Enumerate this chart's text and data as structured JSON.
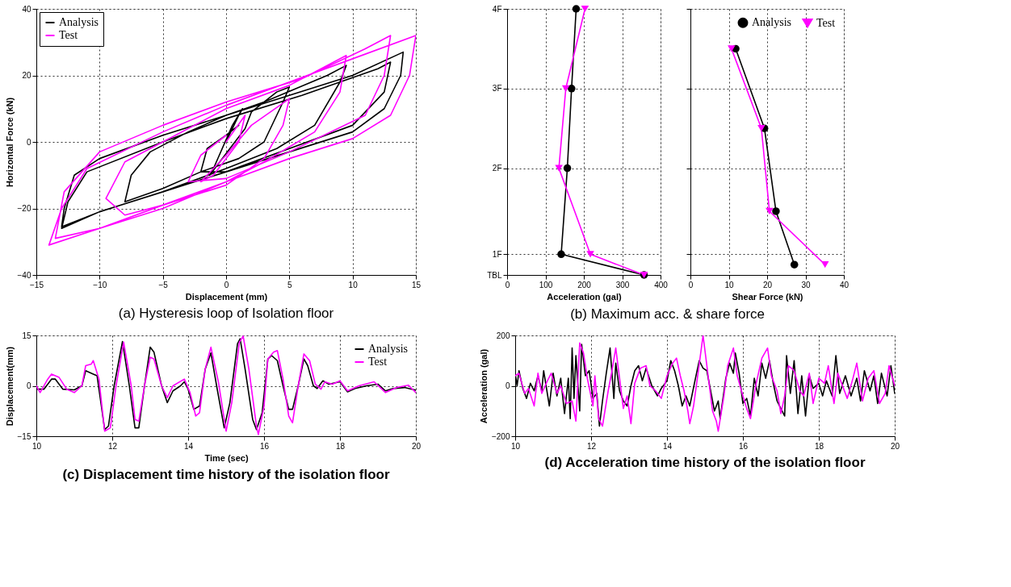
{
  "chart_data": [
    {
      "type": "line",
      "title": "(a) Hysteresis loop of Isolation floor",
      "xlabel": "Displacement (mm)",
      "ylabel": "Horizontal Force (kN)",
      "xlim": [
        -15,
        15
      ],
      "ylim": [
        -40,
        40
      ],
      "xticks": [
        -15,
        -10,
        -5,
        0,
        5,
        10,
        15
      ],
      "yticks": [
        -40,
        -20,
        0,
        20,
        40
      ],
      "grid": true,
      "legend": "top left",
      "line_style": "solid",
      "series": [
        {
          "name": "Analysis",
          "color": "#000000",
          "x": [
            0,
            1,
            1.3,
            0.5,
            -1,
            -1.3,
            -0.5,
            1.5,
            2,
            4,
            5,
            4.5,
            3,
            1,
            -2,
            -5,
            -8,
            -7.5,
            -6,
            -3,
            0,
            3,
            8,
            9.5,
            9,
            7,
            4,
            0,
            -5,
            -10,
            -13,
            -12.8,
            -12,
            -10,
            -5,
            0,
            5,
            10,
            14,
            13.8,
            12.5,
            10,
            5,
            0,
            -5,
            -10,
            -13,
            -12.5,
            -11,
            -5,
            0,
            6,
            12,
            13,
            12.5,
            10,
            5,
            0,
            -2,
            -1.5,
            0,
            1
          ],
          "values": [
            0,
            8,
            10,
            5,
            -8,
            -10,
            -6,
            4,
            9,
            15,
            16.5,
            12,
            0,
            -5,
            -9,
            -14,
            -18,
            -10,
            -3,
            3,
            8,
            12,
            20,
            23,
            18,
            5,
            -2,
            -8,
            -15,
            -21,
            -25.5,
            -20,
            -10,
            -5,
            2,
            8,
            14,
            20,
            27,
            20,
            10,
            3,
            -3,
            -9,
            -15,
            -21,
            -26,
            -18,
            -9,
            0,
            7,
            14,
            22,
            24,
            15,
            5,
            -2,
            -9,
            -9,
            -2,
            2,
            5
          ]
        },
        {
          "name": "Test",
          "color": "#ff00ff",
          "x": [
            0,
            1.5,
            1,
            -1,
            -2,
            0,
            2,
            5,
            4.5,
            3,
            0,
            -5,
            -8,
            -9.5,
            -8,
            -5,
            0,
            5,
            9.5,
            9,
            7,
            3,
            0,
            -5,
            -10,
            -14,
            -13,
            -11,
            -5,
            0,
            5,
            10,
            15,
            14.5,
            13,
            10,
            5,
            0,
            -5,
            -10,
            -13.5,
            -12.8,
            -10,
            -5,
            0,
            6,
            11,
            13,
            12.5,
            11,
            5,
            0,
            -3,
            -2,
            0
          ],
          "values": [
            0,
            8,
            0,
            -10,
            -12,
            -4,
            5,
            13,
            5,
            -5,
            -13,
            -19,
            -22,
            -17,
            -6,
            0,
            10,
            17,
            26,
            15,
            3,
            -6,
            -12,
            -20,
            -26,
            -31,
            -20,
            -8,
            3,
            11,
            18,
            25,
            32,
            20,
            8,
            1,
            -5,
            -12,
            -19,
            -26,
            -29,
            -15,
            -3,
            5,
            12,
            19,
            28,
            32,
            20,
            8,
            -3,
            -11,
            -12,
            -4,
            2
          ]
        }
      ]
    },
    {
      "type": "line",
      "title": "(b) Maximum acc. & share force",
      "xlabel": "Acceleration (gal)",
      "xlim": [
        0,
        400
      ],
      "ylim": [
        0.66,
        4
      ],
      "xticks": [
        0,
        100,
        200,
        300,
        400
      ],
      "yticks": [
        {
          "value": 0.66,
          "label": "TBL"
        },
        {
          "value": 0.92,
          "label": "1F"
        },
        {
          "value": 2,
          "label": "2F"
        },
        {
          "value": 3,
          "label": "3F"
        },
        {
          "value": 4,
          "label": "4F"
        }
      ],
      "grid": true,
      "legend": false,
      "line_style": "solid",
      "series": [
        {
          "color": "#000000",
          "marker": "circle",
          "x": [
            180,
            168,
            157,
            141,
            357
          ],
          "values": [
            4,
            3,
            2,
            0.92,
            0.66
          ]
        },
        {
          "color": "#ff00ff",
          "marker": "triangle",
          "x": [
            203,
            153,
            135,
            217,
            357
          ],
          "values": [
            4,
            3,
            2,
            0.92,
            0.66
          ]
        }
      ]
    },
    {
      "type": "line",
      "xlabel": "Shear Force (kN)",
      "xlim": [
        0,
        40
      ],
      "ylim": [
        0.66,
        4
      ],
      "xticks": [
        0,
        10,
        20,
        30,
        40
      ],
      "yticks": [
        {
          "value": 0.66,
          "label": null
        },
        {
          "value": 0.92,
          "label": null
        },
        {
          "value": 2,
          "label": null
        },
        {
          "value": 3,
          "label": null
        },
        {
          "value": 4,
          "label": null
        }
      ],
      "tick_labels": "x",
      "grid": true,
      "legend": "top right",
      "line_style": "solid",
      "series": [
        {
          "name": "Analysis",
          "color": "#000000",
          "marker": "circle",
          "x": [
            11.8,
            19.3,
            22.3,
            27.1
          ],
          "values": [
            3.5,
            2.5,
            1.46,
            0.79
          ]
        },
        {
          "name": "Test",
          "color": "#ff00ff",
          "marker": "triangle",
          "x": [
            10.7,
            18.5,
            20.6,
            35.1
          ],
          "values": [
            3.5,
            2.5,
            1.46,
            0.79
          ]
        }
      ]
    },
    {
      "type": "line",
      "title": "(c) Displacement time history of the isolation floor",
      "xlabel": "Time (sec)",
      "ylabel": "Displacement(mm)",
      "xlim": [
        10,
        20
      ],
      "ylim": [
        -15,
        15
      ],
      "xticks": [
        10,
        12,
        14,
        16,
        18,
        20
      ],
      "yticks": [
        -15,
        0,
        15
      ],
      "grid": true,
      "legend": "top right",
      "line_style": "solid",
      "series": [
        {
          "name": "Analysis",
          "color": "#000000",
          "x": [
            10.0,
            10.2,
            10.4,
            10.5,
            10.7,
            11.0,
            11.2,
            11.3,
            11.5,
            11.6,
            11.8,
            11.9,
            12.05,
            12.27,
            12.45,
            12.6,
            12.7,
            12.85,
            13.0,
            13.1,
            13.3,
            13.45,
            13.6,
            13.8,
            13.9,
            14.0,
            14.15,
            14.3,
            14.45,
            14.6,
            14.75,
            14.95,
            15.1,
            15.3,
            15.37,
            15.5,
            15.7,
            15.8,
            15.95,
            16.1,
            16.2,
            16.35,
            16.5,
            16.65,
            16.75,
            16.9,
            17.05,
            17.15,
            17.3,
            17.4,
            17.55,
            17.7,
            18.0,
            18.2,
            18.4,
            18.7,
            19.0,
            19.2,
            19.4,
            19.7,
            20.0
          ],
          "values": [
            -1,
            -1,
            2,
            2,
            -1,
            -1.2,
            0,
            4.5,
            3.5,
            3,
            -13,
            -12,
            0,
            13.2,
            0,
            -12.5,
            -12.5,
            0,
            11.5,
            10,
            0,
            -5,
            -1.5,
            0,
            1.2,
            -1,
            -7,
            -6,
            5,
            9.8,
            0,
            -12.5,
            -5,
            12.5,
            14,
            5,
            -10,
            -13,
            -8,
            8,
            9,
            7.5,
            0,
            -7,
            -7,
            0,
            8,
            6,
            0,
            -0.8,
            1.5,
            0.5,
            1.2,
            -1.8,
            -0.8,
            0,
            0.5,
            -1.5,
            -0.8,
            -0.5,
            -1.3
          ]
        },
        {
          "name": "Test",
          "color": "#ff00ff",
          "x": [
            10.0,
            10.1,
            10.3,
            10.4,
            10.6,
            10.8,
            11.0,
            11.2,
            11.3,
            11.45,
            11.5,
            11.65,
            11.8,
            11.95,
            12.1,
            12.3,
            12.5,
            12.6,
            12.7,
            12.85,
            13.0,
            13.1,
            13.3,
            13.45,
            13.6,
            13.9,
            14.05,
            14.2,
            14.3,
            14.45,
            14.6,
            14.8,
            15.0,
            15.15,
            15.35,
            15.45,
            15.6,
            15.8,
            15.85,
            16.0,
            16.1,
            16.25,
            16.35,
            16.5,
            16.65,
            16.75,
            16.9,
            17.05,
            17.2,
            17.35,
            17.5,
            17.6,
            17.8,
            18.0,
            18.2,
            18.5,
            18.9,
            19.2,
            19.5,
            19.8,
            20.0
          ],
          "values": [
            0,
            -2,
            2,
            3.5,
            2.5,
            -1,
            -2,
            0,
            6,
            6.5,
            7.5,
            2,
            -13.5,
            -12.5,
            0,
            13,
            0,
            -10,
            -10.5,
            0,
            8.5,
            8,
            0,
            -3.5,
            0,
            2,
            -2,
            -9,
            -8,
            5,
            11.5,
            1,
            -13.5,
            -5,
            13,
            14.8,
            5,
            -12,
            -14.5,
            -6,
            8,
            10,
            10.5,
            2,
            -9,
            -11,
            0,
            9.5,
            7.5,
            0.5,
            -1,
            1.2,
            0.5,
            1.5,
            -1.5,
            0,
            1.2,
            -2,
            -0.5,
            0.2,
            -2
          ]
        }
      ]
    },
    {
      "type": "line",
      "title": "(d) Acceleration time history of the isolation floor",
      "ylabel": "Acceleration (gal)",
      "xlim": [
        10,
        20
      ],
      "ylim": [
        -200,
        200
      ],
      "xticks": [
        10,
        12,
        14,
        16,
        18,
        20
      ],
      "yticks": [
        -200,
        0,
        200
      ],
      "grid": true,
      "legend": false,
      "line_style": "solid",
      "series": [
        {
          "color": "#000000",
          "x": [
            10.0,
            10.05,
            10.1,
            10.2,
            10.3,
            10.4,
            10.5,
            10.6,
            10.7,
            10.75,
            10.9,
            11.0,
            11.1,
            11.2,
            11.3,
            11.4,
            11.45,
            11.5,
            11.55,
            11.6,
            11.7,
            11.75,
            11.85,
            11.95,
            12.05,
            12.15,
            12.22,
            12.3,
            12.4,
            12.5,
            12.6,
            12.65,
            12.75,
            12.85,
            12.95,
            13.05,
            13.15,
            13.25,
            13.35,
            13.45,
            13.6,
            13.75,
            13.85,
            14.0,
            14.1,
            14.2,
            14.3,
            14.4,
            14.5,
            14.6,
            14.75,
            14.85,
            14.95,
            15.05,
            15.15,
            15.25,
            15.35,
            15.4,
            15.55,
            15.65,
            15.75,
            15.8,
            15.9,
            16.0,
            16.1,
            16.2,
            16.3,
            16.4,
            16.5,
            16.6,
            16.7,
            16.8,
            16.9,
            17.0,
            17.1,
            17.15,
            17.25,
            17.35,
            17.45,
            17.55,
            17.65,
            17.75,
            17.85,
            18.0,
            18.1,
            18.2,
            18.35,
            18.45,
            18.55,
            18.7,
            18.85,
            19.0,
            19.1,
            19.2,
            19.35,
            19.45,
            19.55,
            19.65,
            19.8,
            19.9,
            20.0
          ],
          "values": [
            50,
            0,
            60,
            -10,
            -50,
            10,
            -20,
            40,
            -20,
            60,
            -80,
            50,
            -40,
            30,
            -110,
            30,
            -130,
            150,
            -50,
            120,
            -100,
            165,
            40,
            60,
            -50,
            -30,
            -160,
            -60,
            50,
            150,
            -50,
            90,
            -20,
            -60,
            -80,
            0,
            60,
            80,
            20,
            70,
            0,
            -40,
            -10,
            20,
            100,
            60,
            0,
            -80,
            -40,
            -80,
            30,
            100,
            70,
            60,
            -20,
            -100,
            -60,
            -130,
            30,
            90,
            50,
            130,
            50,
            -70,
            -50,
            -120,
            30,
            -40,
            90,
            30,
            100,
            10,
            -60,
            -90,
            -120,
            120,
            -30,
            100,
            -110,
            40,
            -120,
            40,
            -10,
            10,
            -40,
            20,
            -40,
            120,
            -30,
            40,
            -40,
            30,
            -60,
            60,
            -20,
            40,
            -70,
            50,
            -40,
            80,
            -30
          ]
        },
        {
          "color": "#ff00ff",
          "x": [
            10.0,
            10.1,
            10.25,
            10.35,
            10.5,
            10.6,
            10.7,
            10.85,
            10.95,
            11.1,
            11.2,
            11.35,
            11.5,
            11.6,
            11.7,
            11.8,
            11.9,
            12.05,
            12.1,
            12.2,
            12.3,
            12.45,
            12.55,
            12.65,
            12.75,
            12.85,
            12.95,
            13.05,
            13.15,
            13.3,
            13.45,
            13.55,
            13.7,
            13.85,
            14.0,
            14.15,
            14.25,
            14.35,
            14.45,
            14.55,
            14.6,
            14.7,
            14.8,
            14.95,
            15.1,
            15.2,
            15.3,
            15.35,
            15.5,
            15.6,
            15.75,
            15.85,
            16.0,
            16.1,
            16.2,
            16.35,
            16.5,
            16.65,
            16.75,
            16.9,
            17.0,
            17.1,
            17.2,
            17.35,
            17.5,
            17.6,
            17.75,
            17.85,
            18.0,
            18.15,
            18.25,
            18.4,
            18.5,
            18.6,
            18.75,
            18.9,
            19.0,
            19.15,
            19.3,
            19.45,
            19.6,
            19.75,
            19.85,
            20.0
          ],
          "values": [
            40,
            50,
            -30,
            -10,
            -80,
            50,
            -30,
            20,
            50,
            -30,
            0,
            -70,
            -60,
            -140,
            170,
            130,
            30,
            -80,
            40,
            -130,
            -160,
            -20,
            60,
            150,
            30,
            -90,
            -40,
            -150,
            10,
            70,
            80,
            0,
            -20,
            -50,
            40,
            90,
            110,
            40,
            -20,
            -100,
            -150,
            -80,
            30,
            200,
            20,
            -100,
            -140,
            -180,
            -40,
            80,
            150,
            40,
            -40,
            -90,
            -130,
            10,
            110,
            150,
            40,
            -20,
            -110,
            -40,
            80,
            60,
            -20,
            -40,
            50,
            -70,
            30,
            10,
            80,
            -70,
            50,
            10,
            -50,
            30,
            90,
            -60,
            30,
            60,
            -70,
            -30,
            80,
            0
          ]
        }
      ]
    }
  ]
}
